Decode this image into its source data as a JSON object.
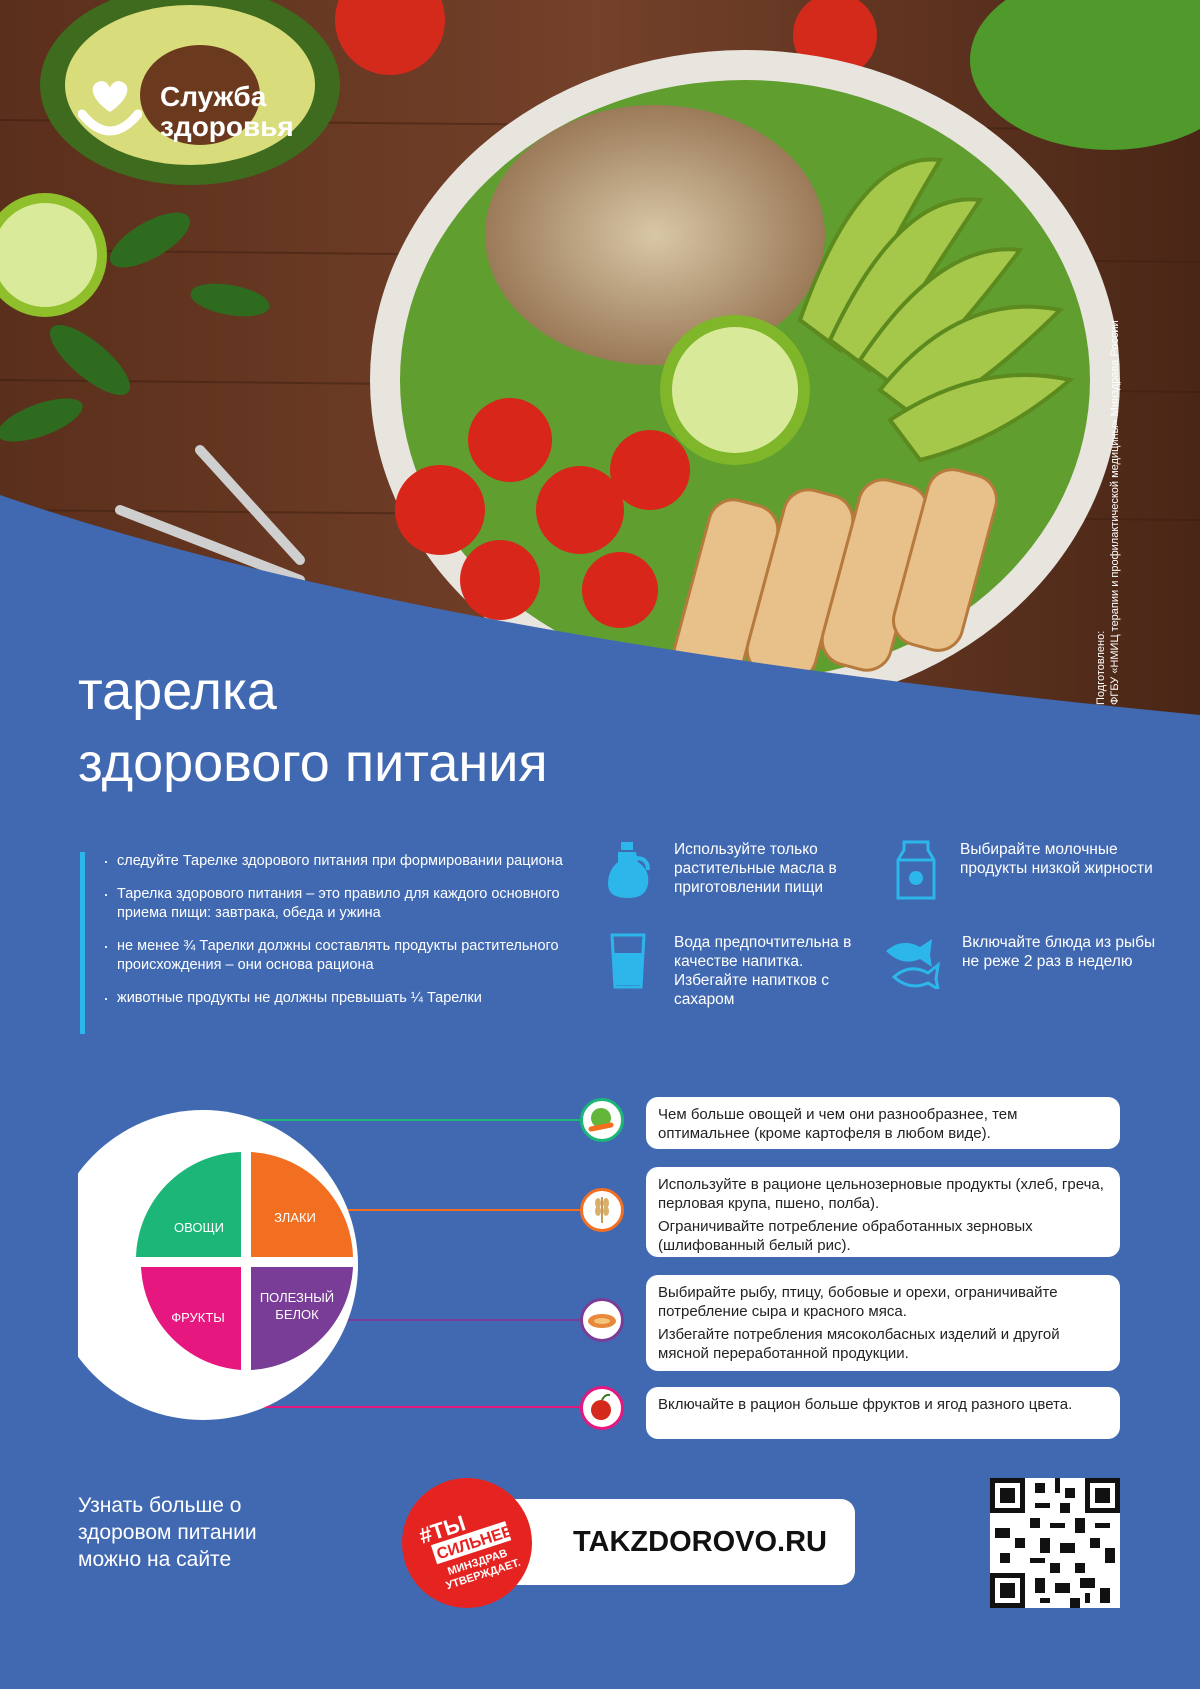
{
  "brand": {
    "name_line1": "Служба",
    "name_line2": "здоровья",
    "logo_icon": "heart-smile-icon"
  },
  "side_note": {
    "line1": "Подготовлено:",
    "line2": "ФГБУ «НМИЦ терапии и профилактической медицины» Минздрава России"
  },
  "title": {
    "line1": "тарелка",
    "line2": "здорового питания"
  },
  "tips": [
    "следуйте Тарелке здорового питания при формировании рациона",
    "Тарелка здорового питания – это правило для каждого основного приема пищи: завтрака, обеда и ужина",
    "не менее ¾ Тарелки должны составлять продукты растительного происхождения – они основа рациона",
    "животные продукты не должны превышать ¼ Тарелки"
  ],
  "advice": [
    {
      "icon": "oil-bottle-icon",
      "text": "Используйте только растительные масла в приготовлении пищи"
    },
    {
      "icon": "milk-carton-icon",
      "text": "Выбирайте молочные продукты низкой жирности"
    },
    {
      "icon": "water-glass-icon",
      "text": "Вода предпочтительна в качестве напитка. Избегайте напитков с сахаром"
    },
    {
      "icon": "fish-icon",
      "text": "Включайте блюда из рыбы не реже 2 раз в неделю"
    }
  ],
  "plate": {
    "sections": [
      {
        "label": "ОВОЩИ",
        "color": "#1db679"
      },
      {
        "label": "ЗЛАКИ",
        "color": "#f26f21"
      },
      {
        "label": "ПОЛЕЗНЫЙ БЕЛОК",
        "label_line1": "ПОЛЕЗНЫЙ",
        "label_line2": "БЕЛОК",
        "color": "#7a3d97"
      },
      {
        "label": "ФРУКТЫ",
        "color": "#e6177f"
      }
    ]
  },
  "cards": [
    {
      "icon": "cabbage-carrot-icon",
      "color": "#1db679",
      "paragraphs": [
        "Чем больше овощей и чем они разнообразнее, тем оптимальнее (кроме картофеля в любом виде)."
      ]
    },
    {
      "icon": "wheat-icon",
      "color": "#f26f21",
      "paragraphs": [
        "Используйте в рационе цельнозерновые продукты (хлеб, греча, перловая крупа, пшено, полба).",
        "Ограничивайте потребление обработанных зерновых (шлифованный белый рис)."
      ]
    },
    {
      "icon": "fish-dish-icon",
      "color": "#7a3d97",
      "paragraphs": [
        "Выбирайте рыбу, птицу, бобовые и орехи, ограничивайте потребление сыра и красного мяса.",
        "Избегайте потребления мясоколбасных изделий и другой мясной переработанной продукции."
      ]
    },
    {
      "icon": "apple-icon",
      "color": "#e6177f",
      "paragraphs": [
        "Включайте в рацион больше фруктов и ягод разного цвета."
      ]
    }
  ],
  "footer": {
    "more_text_line1": "Узнать больше о",
    "more_text_line2": "здоровом питании",
    "more_text_line3": "можно на сайте",
    "site_url": "TAKZDOROVO.RU",
    "promo_tag": "#ТЫ",
    "promo_line1": "СИЛЬНЕЕ",
    "promo_line2": "МИНЗДРАВ",
    "promo_line3": "УТВЕРЖДАЕТ.",
    "qr_icon": "qr-code-icon"
  },
  "colors": {
    "background": "#4169b2",
    "accent": "#2cb6ea",
    "wood": "#6b3a22"
  }
}
